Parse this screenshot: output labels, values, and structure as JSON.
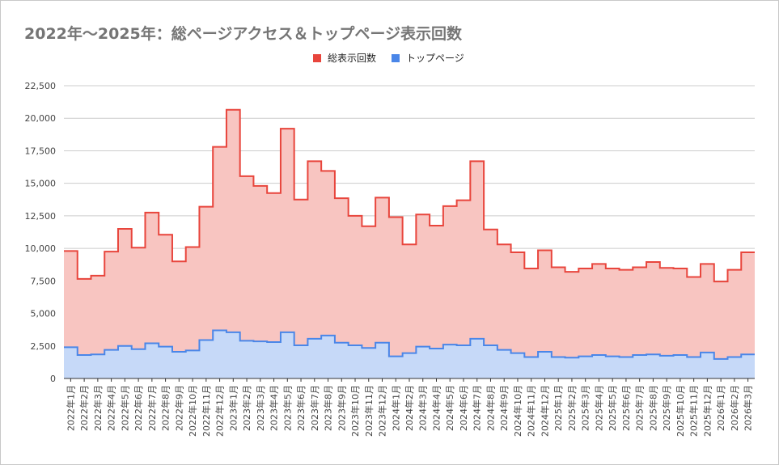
{
  "chart_data": {
    "type": "area",
    "title": "2022年～2025年：総ページアクセス＆トップページ表示回数",
    "xlabel": "",
    "ylabel": "",
    "ylim": [
      0,
      22500
    ],
    "yticks": [
      0,
      2500,
      5000,
      7500,
      10000,
      12500,
      15000,
      17500,
      20000,
      22500
    ],
    "ytick_labels": [
      "0",
      "2,500",
      "5,000",
      "7,500",
      "10,000",
      "12,500",
      "15,000",
      "17,500",
      "20,000",
      "22,500"
    ],
    "grid": true,
    "legend_position": "top-center",
    "categories": [
      "2022年1月",
      "2022年2月",
      "2022年3月",
      "2022年4月",
      "2022年5月",
      "2022年6月",
      "2022年7月",
      "2022年8月",
      "2022年9月",
      "2022年10月",
      "2022年11月",
      "2022年12月",
      "2023年1月",
      "2023年2月",
      "2023年3月",
      "2023年4月",
      "2023年5月",
      "2023年6月",
      "2023年7月",
      "2023年8月",
      "2023年9月",
      "2023年10月",
      "2023年11月",
      "2023年12月",
      "2024年1月",
      "2024年2月",
      "2024年3月",
      "2024年4月",
      "2024年5月",
      "2024年6月",
      "2024年7月",
      "2024年8月",
      "2024年9月",
      "2024年10月",
      "2024年11月",
      "2024年12月",
      "2025年1月",
      "2025年2月",
      "2025年3月",
      "2025年4月",
      "2025年5月",
      "2025年6月",
      "2025年7月",
      "2025年8月",
      "2025年9月",
      "2025年10月",
      "2025年11月",
      "2025年12月",
      "2026年1月",
      "2026年2月",
      "2026年3月"
    ],
    "series": [
      {
        "name": "総表示回数",
        "color": "#e8453c",
        "fill": "#f8c5c1",
        "values": [
          9800,
          7650,
          7900,
          9750,
          11500,
          10050,
          12750,
          11050,
          9000,
          10100,
          13200,
          17800,
          20650,
          15550,
          14800,
          14250,
          19200,
          13750,
          16700,
          15950,
          13850,
          12500,
          11700,
          13900,
          12400,
          10300,
          12600,
          11750,
          13250,
          13700,
          16700,
          11450,
          10300,
          9700,
          8450,
          9850,
          8550,
          8200,
          8450,
          8800,
          8450,
          8350,
          8550,
          8950,
          8500,
          8450,
          7800,
          8800,
          7450,
          8350,
          9700
        ]
      },
      {
        "name": "トップページ",
        "color": "#4a86e8",
        "fill": "#c6d9f8",
        "values": [
          2400,
          1800,
          1850,
          2200,
          2500,
          2250,
          2700,
          2450,
          2050,
          2150,
          2950,
          3700,
          3550,
          2900,
          2850,
          2800,
          3550,
          2550,
          3050,
          3300,
          2750,
          2550,
          2350,
          2750,
          1700,
          1950,
          2450,
          2300,
          2600,
          2550,
          3050,
          2550,
          2200,
          1950,
          1650,
          2050,
          1650,
          1600,
          1700,
          1800,
          1700,
          1650,
          1800,
          1850,
          1750,
          1800,
          1650,
          2000,
          1500,
          1650,
          1850
        ]
      }
    ]
  }
}
